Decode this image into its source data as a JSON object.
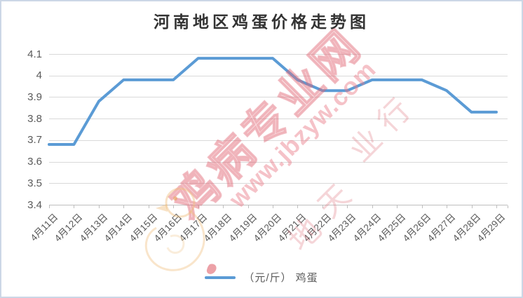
{
  "title": "河南地区鸡蛋价格走势图",
  "legend": {
    "series_label": "（元/斤） 鸡蛋"
  },
  "watermark": {
    "brand_text": "鸡病专业网",
    "url_text": "www.jbzyw.com",
    "script_chars": [
      "行",
      "业",
      "天",
      "地"
    ]
  },
  "colors": {
    "line": "#5B9BD5",
    "gridline": "#D9D9D9",
    "axis": "#BFBFBF",
    "label": "#595959",
    "watermark_pink": "#E06A78"
  },
  "chart_data": {
    "type": "line",
    "title": "河南地区鸡蛋价格走势图",
    "categories": [
      "4月11日",
      "4月12日",
      "4月13日",
      "4月14日",
      "4月15日",
      "4月16日",
      "4月17日",
      "4月18日",
      "4月19日",
      "4月20日",
      "4月21日",
      "4月22日",
      "4月23日",
      "4月24日",
      "4月25日",
      "4月26日",
      "4月27日",
      "4月28日",
      "4月29日"
    ],
    "series": [
      {
        "name": "（元/斤） 鸡蛋",
        "values": [
          3.68,
          3.68,
          3.88,
          3.98,
          3.98,
          3.98,
          4.08,
          4.08,
          4.08,
          4.08,
          3.98,
          3.93,
          3.93,
          3.98,
          3.98,
          3.98,
          3.93,
          3.83,
          3.83
        ]
      }
    ],
    "xlabel": "",
    "ylabel": "",
    "ylim": [
      3.4,
      4.1
    ],
    "yticks": [
      {
        "label": "4.1",
        "value": 4.1
      },
      {
        "label": "4",
        "value": 4.0
      },
      {
        "label": "3.9",
        "value": 3.9
      },
      {
        "label": "3.8",
        "value": 3.8
      },
      {
        "label": "3.7",
        "value": 3.7
      },
      {
        "label": "3.6",
        "value": 3.6
      },
      {
        "label": "3.5",
        "value": 3.5
      },
      {
        "label": "3.4",
        "value": 3.4
      }
    ],
    "grid": "horizontal",
    "legend_position": "bottom",
    "line_color": "#5B9BD5"
  }
}
